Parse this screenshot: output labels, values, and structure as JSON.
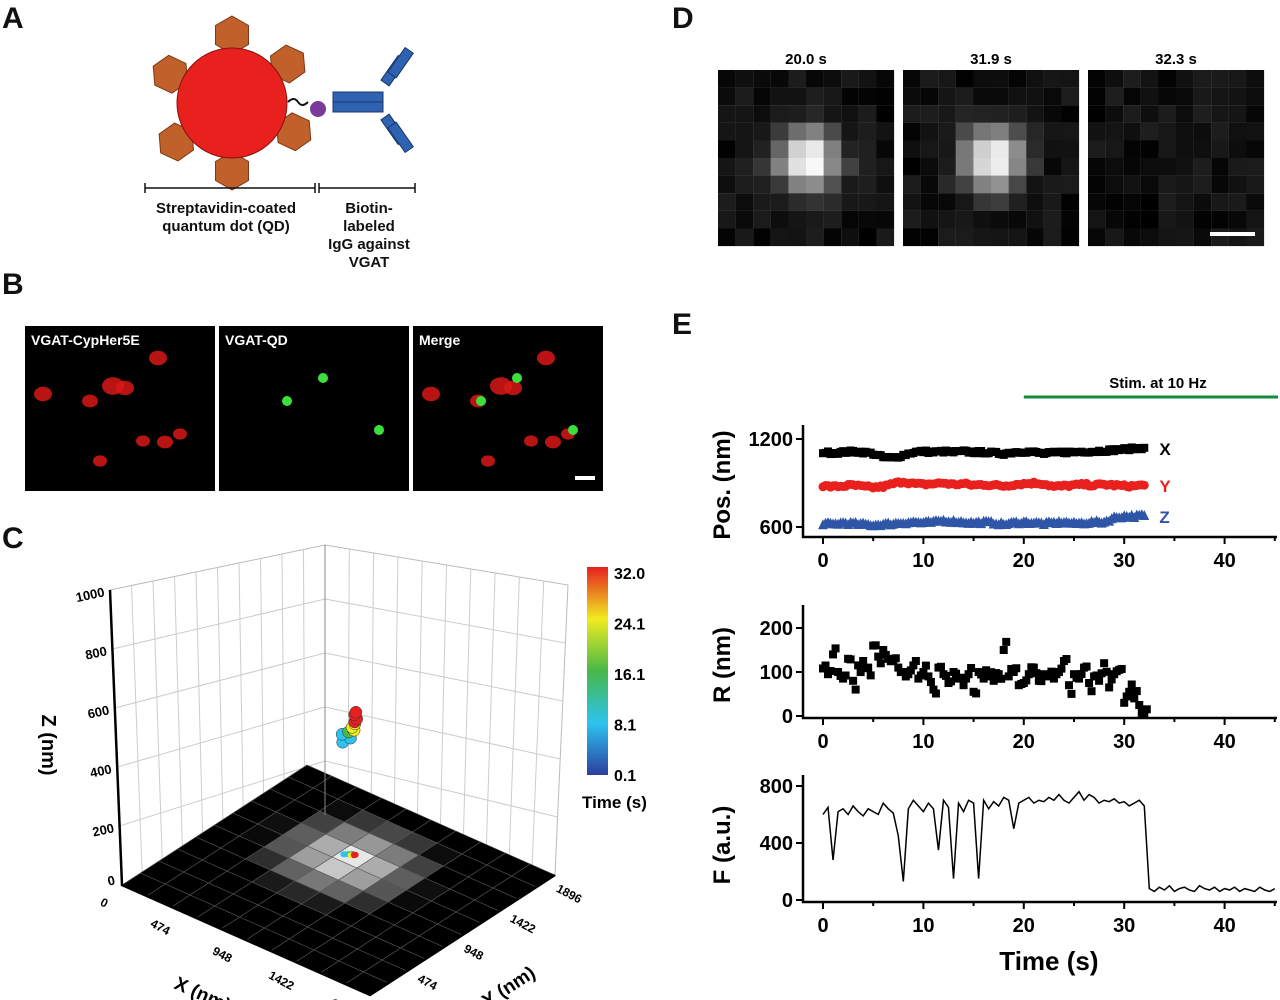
{
  "panels": {
    "A": {
      "label": "A",
      "qd_caption": "Streptavidin-coated quantum dot (QD)",
      "igg_caption": [
        "Biotin-",
        "labeled",
        "IgG against",
        "VGAT"
      ],
      "colors": {
        "qd": "#e8201e",
        "streptavidin": "#c0602a",
        "biotin": "#7a3a9a",
        "igg": "#2f62b0"
      }
    },
    "B": {
      "label": "B",
      "images": [
        {
          "title": "VGAT-CypHer5E",
          "channel": "red"
        },
        {
          "title": "VGAT-QD",
          "channel": "green"
        },
        {
          "title": "Merge",
          "channel": "merge"
        }
      ],
      "scale_bar": true
    },
    "C": {
      "label": "C"
    },
    "D": {
      "label": "D",
      "frames": [
        {
          "time": "20.0 s",
          "brightness": 1.0
        },
        {
          "time": "31.9 s",
          "brightness": 0.95
        },
        {
          "time": "32.3 s",
          "brightness": 0.0
        }
      ],
      "scale_bar": true
    },
    "E": {
      "label": "E",
      "stim_label": "Stim. at 10 Hz",
      "stim_start_s": 20,
      "stim_color": "#138a3e",
      "xlabel": "Time (s)"
    }
  },
  "chart_data": [
    {
      "type": "scatter",
      "panel": "C",
      "projection": "3d",
      "xlabel": "X (nm)",
      "ylabel": "Y (nm)",
      "zlabel": "Z (nm)",
      "xticks": [
        "0",
        "474",
        "948",
        "1422",
        "1896"
      ],
      "yticks": [
        "0",
        "474",
        "948",
        "1422",
        "1896"
      ],
      "zticks": [
        "0",
        "200",
        "400",
        "600",
        "800",
        "1000"
      ],
      "xlim": [
        0,
        1896
      ],
      "ylim": [
        0,
        1896
      ],
      "zlim": [
        0,
        1000
      ],
      "colorbar": {
        "label": "Time (s)",
        "ticks": [
          "32.0",
          "24.1",
          "16.1",
          "8.1",
          "0.1"
        ],
        "colormap": "jet",
        "range": [
          0.1,
          32.0
        ]
      },
      "floor_image": "grayscale QD intensity projection",
      "points": [
        {
          "x": 800,
          "y": 1220,
          "z": 560,
          "t": 2
        },
        {
          "x": 810,
          "y": 1230,
          "z": 580,
          "t": 5
        },
        {
          "x": 790,
          "y": 1210,
          "z": 600,
          "t": 7
        },
        {
          "x": 820,
          "y": 1240,
          "z": 610,
          "t": 9
        },
        {
          "x": 830,
          "y": 1250,
          "z": 620,
          "t": 12
        },
        {
          "x": 840,
          "y": 1240,
          "z": 630,
          "t": 15
        },
        {
          "x": 850,
          "y": 1250,
          "z": 625,
          "t": 17
        },
        {
          "x": 830,
          "y": 1230,
          "z": 640,
          "t": 20
        },
        {
          "x": 840,
          "y": 1245,
          "z": 655,
          "t": 23
        },
        {
          "x": 845,
          "y": 1250,
          "z": 665,
          "t": 26
        },
        {
          "x": 850,
          "y": 1255,
          "z": 680,
          "t": 29
        },
        {
          "x": 840,
          "y": 1250,
          "z": 700,
          "t": 31
        },
        {
          "x": 845,
          "y": 1245,
          "z": 715,
          "t": 32
        }
      ]
    },
    {
      "type": "scatter",
      "panel": "E-position",
      "ylabel": "Pos. (nm)",
      "xlim": [
        0,
        45
      ],
      "ylim": [
        530,
        1260
      ],
      "xticks": [
        0,
        10,
        20,
        30,
        40
      ],
      "yticks": [
        600,
        1200
      ],
      "x": [
        0,
        1,
        2,
        3,
        4,
        5,
        6,
        7,
        8,
        9,
        10,
        11,
        12,
        13,
        14,
        15,
        16,
        17,
        18,
        19,
        20,
        21,
        22,
        23,
        24,
        25,
        26,
        27,
        28,
        29,
        30,
        31,
        32
      ],
      "series": [
        {
          "name": "X",
          "color": "#000000",
          "marker": "square",
          "values": [
            1110,
            1105,
            1110,
            1115,
            1110,
            1100,
            1075,
            1070,
            1090,
            1110,
            1115,
            1110,
            1115,
            1110,
            1115,
            1110,
            1110,
            1105,
            1100,
            1110,
            1115,
            1110,
            1100,
            1105,
            1110,
            1110,
            1115,
            1115,
            1120,
            1125,
            1130,
            1135,
            1140
          ]
        },
        {
          "name": "Y",
          "color": "#e8201e",
          "marker": "circle",
          "values": [
            880,
            875,
            880,
            885,
            875,
            870,
            875,
            895,
            910,
            895,
            890,
            895,
            900,
            890,
            895,
            885,
            890,
            885,
            880,
            890,
            895,
            900,
            895,
            875,
            880,
            885,
            890,
            885,
            890,
            885,
            880,
            880,
            885
          ]
        },
        {
          "name": "Z",
          "color": "#2f55a6",
          "marker": "triangle",
          "values": [
            620,
            615,
            625,
            620,
            615,
            610,
            615,
            620,
            625,
            630,
            625,
            630,
            640,
            635,
            630,
            625,
            630,
            625,
            615,
            625,
            630,
            625,
            620,
            625,
            630,
            620,
            625,
            630,
            630,
            660,
            670,
            670,
            675
          ]
        }
      ]
    },
    {
      "type": "scatter",
      "panel": "E-R",
      "ylabel": "R (nm)",
      "xlim": [
        0,
        45
      ],
      "ylim": [
        0,
        250
      ],
      "xticks": [
        0,
        10,
        20,
        30,
        40
      ],
      "yticks": [
        0,
        100,
        200
      ],
      "x": [
        0,
        0.5,
        1,
        1.5,
        2,
        2.5,
        3,
        3.5,
        4,
        4.5,
        5,
        5.5,
        6,
        6.5,
        7,
        7.5,
        8,
        8.5,
        9,
        9.5,
        10,
        10.5,
        11,
        11.5,
        12,
        12.5,
        13,
        13.5,
        14,
        14.5,
        15,
        15.5,
        16,
        16.5,
        17,
        17.5,
        18,
        18.5,
        19,
        19.5,
        20,
        20.5,
        21,
        21.5,
        22,
        22.5,
        23,
        23.5,
        24,
        24.5,
        25,
        25.5,
        26,
        26.5,
        27,
        27.5,
        28,
        28.5,
        29,
        29.5,
        30,
        30.5,
        31,
        31.5,
        32
      ],
      "series": [
        {
          "color": "#000000",
          "marker": "square",
          "values": [
            108,
            95,
            140,
            100,
            85,
            130,
            80,
            115,
            125,
            110,
            160,
            135,
            150,
            130,
            125,
            110,
            100,
            95,
            115,
            85,
            100,
            90,
            60,
            110,
            95,
            75,
            100,
            85,
            70,
            95,
            55,
            100,
            85,
            90,
            80,
            95,
            150,
            90,
            100,
            70,
            75,
            95,
            110,
            80,
            95,
            90,
            85,
            100,
            125,
            70,
            95,
            85,
            110,
            75,
            90,
            80,
            120,
            65,
            95,
            105,
            30,
            55,
            40,
            25,
            5
          ]
        }
      ]
    },
    {
      "type": "line",
      "panel": "E-F",
      "ylabel": "F (a.u.)",
      "xlim": [
        0,
        45
      ],
      "ylim": [
        0,
        800
      ],
      "xticks": [
        0,
        10,
        20,
        30,
        40
      ],
      "yticks": [
        0,
        400,
        800
      ],
      "x": [
        0,
        0.5,
        1,
        1.5,
        2,
        2.5,
        3,
        3.5,
        4,
        4.5,
        5,
        5.5,
        6,
        6.5,
        7,
        7.5,
        8,
        8.5,
        9,
        9.5,
        10,
        10.5,
        11,
        11.5,
        12,
        12.5,
        13,
        13.5,
        14,
        14.5,
        15,
        15.5,
        16,
        16.5,
        17,
        17.5,
        18,
        18.5,
        19,
        19.5,
        20,
        20.5,
        21,
        21.5,
        22,
        22.5,
        23,
        23.5,
        24,
        24.5,
        25,
        25.5,
        26,
        26.5,
        27,
        27.5,
        28,
        28.5,
        29,
        29.5,
        30,
        30.5,
        31,
        31.5,
        32,
        32.5,
        33,
        33.5,
        34,
        34.5,
        35,
        35.5,
        36,
        36.5,
        37,
        37.5,
        38,
        38.5,
        39,
        39.5,
        40,
        40.5,
        41,
        41.5,
        42,
        42.5,
        43,
        43.5,
        44,
        44.5,
        45
      ],
      "series": [
        {
          "color": "#000000",
          "values": [
            600,
            650,
            280,
            620,
            640,
            600,
            660,
            620,
            590,
            640,
            620,
            600,
            680,
            640,
            610,
            450,
            130,
            640,
            700,
            660,
            620,
            680,
            640,
            350,
            700,
            650,
            150,
            680,
            620,
            700,
            680,
            150,
            700,
            640,
            690,
            660,
            720,
            700,
            500,
            680,
            700,
            720,
            680,
            700,
            690,
            720,
            700,
            740,
            700,
            680,
            720,
            760,
            700,
            740,
            720,
            680,
            700,
            690,
            710,
            680,
            690,
            660,
            680,
            700,
            660,
            80,
            60,
            90,
            70,
            100,
            60,
            80,
            90,
            70,
            60,
            100,
            80,
            70,
            90,
            60,
            80,
            70,
            90,
            60,
            80,
            70,
            60,
            90,
            70,
            60,
            80
          ]
        }
      ]
    }
  ]
}
